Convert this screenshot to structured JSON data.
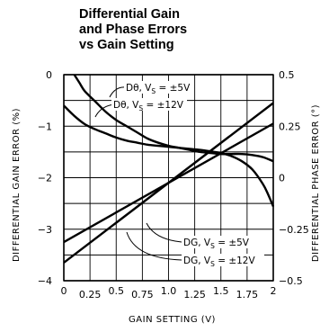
{
  "chart_data": {
    "type": "line",
    "title_lines": [
      "Differential Gain",
      "and Phase Errors",
      "vs Gain Setting"
    ],
    "xlabel": "GAIN SETTING (V)",
    "ylabel_left": "DIFFERENTIAL GAIN ERROR (%)",
    "ylabel_right": "DIFFERENTIAL PHASE ERROR (°)",
    "xlim": [
      0,
      2
    ],
    "ylim_left": [
      -4,
      0
    ],
    "ylim_right": [
      -0.5,
      0.5
    ],
    "x_ticks": [
      {
        "value": 0,
        "label": "0",
        "row": "upper"
      },
      {
        "value": 0.25,
        "label": "0.25",
        "row": "lower"
      },
      {
        "value": 0.5,
        "label": "0.5",
        "row": "upper"
      },
      {
        "value": 0.75,
        "label": "0.75",
        "row": "lower"
      },
      {
        "value": 1.0,
        "label": "1.0",
        "row": "upper"
      },
      {
        "value": 1.25,
        "label": "1.25",
        "row": "lower"
      },
      {
        "value": 1.5,
        "label": "1.5",
        "row": "upper"
      },
      {
        "value": 1.75,
        "label": "1.75",
        "row": "lower"
      },
      {
        "value": 2,
        "label": "2",
        "row": "upper"
      }
    ],
    "y_ticks_left": [
      {
        "value": 0,
        "label": "0"
      },
      {
        "value": -1,
        "label": "−1"
      },
      {
        "value": -2,
        "label": "−2"
      },
      {
        "value": -3,
        "label": "−3"
      },
      {
        "value": -4,
        "label": "−4"
      }
    ],
    "y_ticks_right": [
      {
        "value": 0.5,
        "label": "0.5"
      },
      {
        "value": 0.25,
        "label": "0.25"
      },
      {
        "value": 0,
        "label": "0"
      },
      {
        "value": -0.25,
        "label": "−0.25"
      },
      {
        "value": -0.5,
        "label": "−0.5"
      }
    ],
    "grid": true,
    "series": [
      {
        "name": "Dθ, V",
        "sub": "S",
        "suffix": " = ±5V",
        "axis": "right",
        "x": [
          0.1,
          0.15,
          0.2,
          0.3,
          0.4,
          0.5,
          0.6,
          0.7,
          0.8,
          0.9,
          1.0,
          1.1,
          1.2,
          1.3,
          1.4,
          1.5,
          1.6,
          1.7,
          1.8,
          1.9,
          2.0
        ],
        "y": [
          0.5,
          0.46,
          0.42,
          0.37,
          0.32,
          0.28,
          0.25,
          0.22,
          0.19,
          0.17,
          0.155,
          0.145,
          0.135,
          0.125,
          0.12,
          0.115,
          0.115,
          0.115,
          0.11,
          0.1,
          0.08
        ]
      },
      {
        "name": "Dθ, V",
        "sub": "S",
        "suffix": " = ±12V",
        "axis": "right",
        "x": [
          0.0,
          0.1,
          0.2,
          0.3,
          0.4,
          0.5,
          0.6,
          0.7,
          0.8,
          0.9,
          1.0,
          1.1,
          1.2,
          1.3,
          1.4,
          1.5,
          1.6,
          1.7,
          1.8,
          1.9,
          1.95,
          2.0
        ],
        "y": [
          0.35,
          0.3,
          0.26,
          0.235,
          0.215,
          0.195,
          0.18,
          0.17,
          0.16,
          0.155,
          0.15,
          0.145,
          0.14,
          0.135,
          0.128,
          0.12,
          0.105,
          0.08,
          0.04,
          -0.03,
          -0.08,
          -0.14
        ]
      },
      {
        "name": "DG, V",
        "sub": "S",
        "suffix": " = ±5V",
        "axis": "left",
        "x": [
          0,
          2
        ],
        "y": [
          -3.25,
          -0.95
        ]
      },
      {
        "name": "DG, V",
        "sub": "S",
        "suffix": " = ±12V",
        "axis": "left",
        "x": [
          0,
          2
        ],
        "y": [
          -3.65,
          -0.55
        ]
      }
    ]
  }
}
